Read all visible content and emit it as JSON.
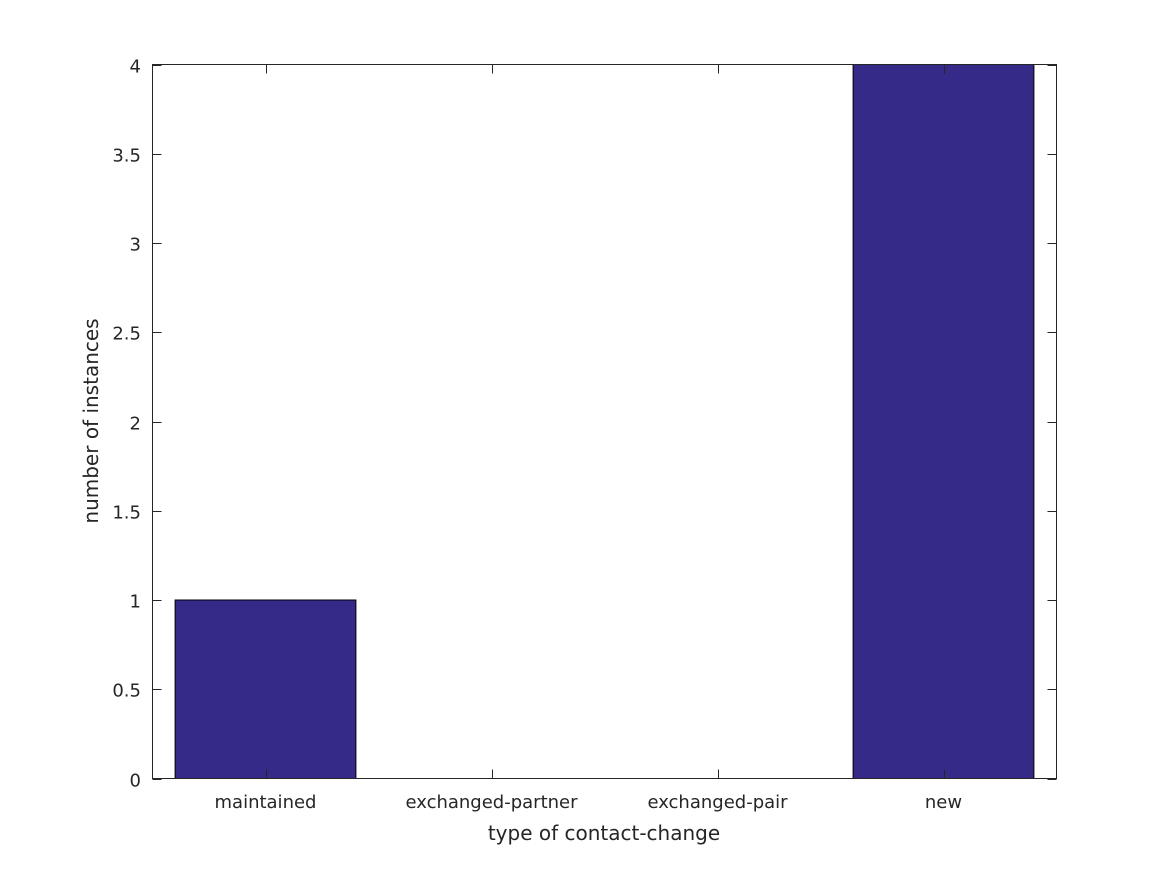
{
  "chart_data": {
    "type": "bar",
    "categories": [
      "maintained",
      "exchanged-partner",
      "exchanged-pair",
      "new"
    ],
    "values": [
      1,
      0,
      0,
      4
    ],
    "title": "",
    "xlabel": "type of contact-change",
    "ylabel": "number of instances",
    "ylim": [
      0,
      4
    ],
    "xlim": [
      0.5,
      4.5
    ],
    "yticks": [
      0,
      0.5,
      1,
      1.5,
      2,
      2.5,
      3,
      3.5,
      4
    ],
    "ytick_labels": [
      "0",
      "0.5",
      "1",
      "1.5",
      "2",
      "2.5",
      "3",
      "3.5",
      "4"
    ],
    "grid": false,
    "bar_color": "#352a87",
    "bar_edge_color": "#000000"
  }
}
